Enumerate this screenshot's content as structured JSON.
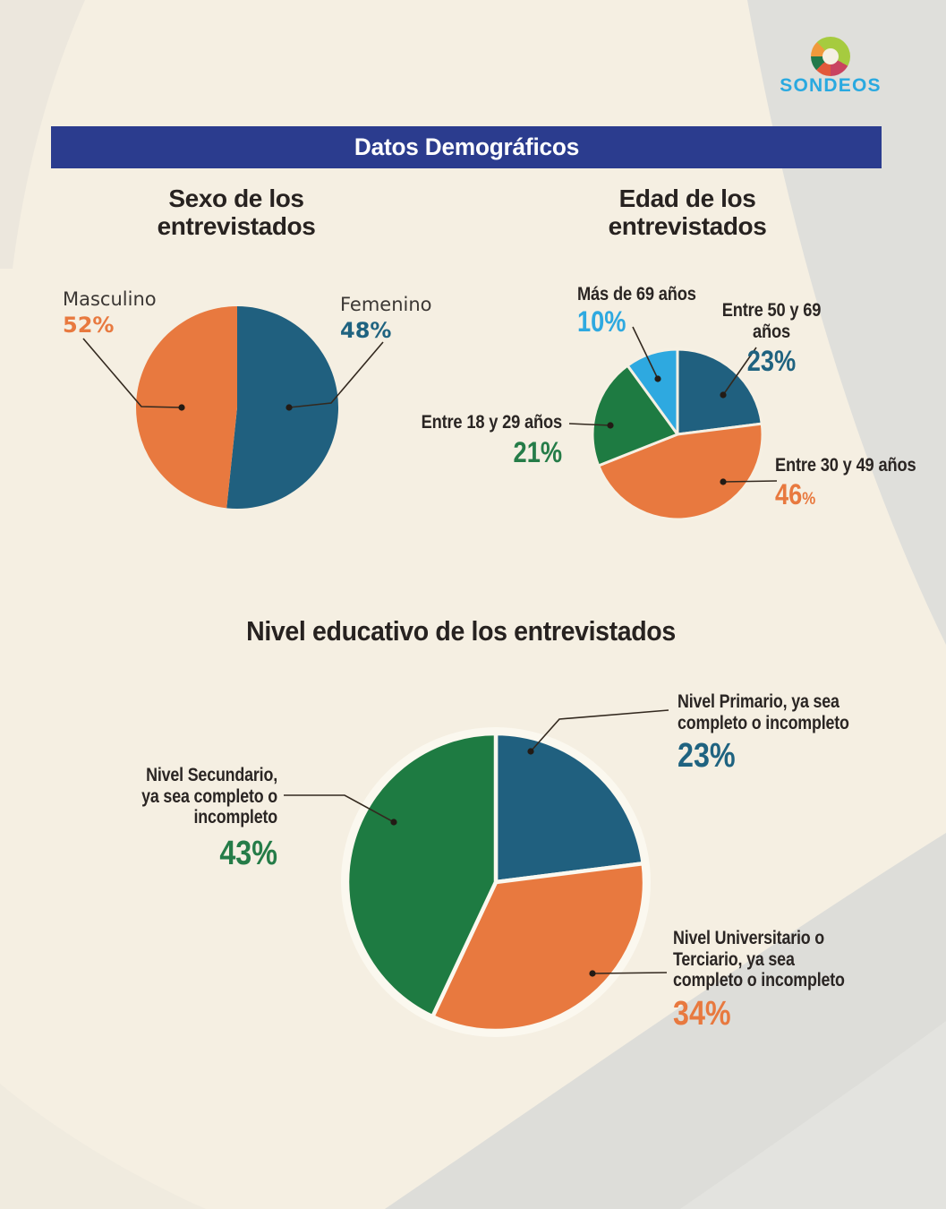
{
  "brand": {
    "name": "SONDEOS",
    "accent": "#29A9E0"
  },
  "banner": {
    "title": "Datos Demográficos",
    "bg": "#2B3C8E"
  },
  "colors": {
    "background": "#F5EFE2",
    "swoosh_gray": "#DFDFDB",
    "blue": "#20607F",
    "orange": "#E8793F",
    "green": "#1E7B42",
    "light_blue": "#2EA9E0",
    "leader_line": "#33291F"
  },
  "sections": {
    "sexo": {
      "title": "Sexo de los entrevistados",
      "display_title": "Sexo de los\nentrevistados",
      "slices": [
        {
          "label": "Femenino",
          "pct": "48%",
          "value": 48,
          "color": "#20607F"
        },
        {
          "label": "Masculino",
          "pct": "52%",
          "value": 52,
          "color": "#E8793F"
        }
      ]
    },
    "edad": {
      "title": "Edad de los entrevistados",
      "display_title": "Edad de los\nentrevistados",
      "slices": [
        {
          "label": "Entre 50 y 69 años",
          "pct": "23%",
          "value": 23,
          "color": "#20607F"
        },
        {
          "label": "Entre 30 y 49 años",
          "pct": "46%",
          "value": 46,
          "color": "#E8793F"
        },
        {
          "label": "Entre 18 y 29 años",
          "pct": "21%",
          "value": 21,
          "color": "#1E7B42"
        },
        {
          "label": "Más de 69 años",
          "pct": "10%",
          "value": 10,
          "color": "#2EA9E0"
        }
      ]
    },
    "educacion": {
      "title": "Nivel educativo de los entrevistados",
      "slices": [
        {
          "label": "Nivel Primario, ya sea\ncompleto o incompleto",
          "pct": "23%",
          "value": 23,
          "color": "#20607F"
        },
        {
          "label": "Nivel Universitario o\nTerciario, ya sea\ncompleto o incompleto",
          "pct": "34%",
          "value": 34,
          "color": "#E8793F"
        },
        {
          "label": "Nivel Secundario,\nya sea completo o incompleto",
          "pct": "43%",
          "value": 43,
          "color": "#1E7B42"
        }
      ]
    }
  },
  "chart_data": [
    {
      "type": "pie",
      "title": "Sexo de los entrevistados",
      "labels": [
        "Femenino",
        "Masculino"
      ],
      "values": [
        48,
        52
      ],
      "unit": "%",
      "colors": [
        "#20607F",
        "#E8793F"
      ],
      "start_angle": "top",
      "direction": "clockwise",
      "legend_position": "callouts"
    },
    {
      "type": "pie",
      "title": "Edad de los entrevistados",
      "labels": [
        "Entre 50 y 69 años",
        "Entre 30 y 49 años",
        "Entre 18 y 29 años",
        "Más de 69 años"
      ],
      "values": [
        23,
        46,
        21,
        10
      ],
      "unit": "%",
      "colors": [
        "#20607F",
        "#E8793F",
        "#1E7B42",
        "#2EA9E0"
      ],
      "start_angle": "top",
      "direction": "clockwise",
      "legend_position": "callouts"
    },
    {
      "type": "pie",
      "title": "Nivel educativo de los entrevistados",
      "labels": [
        "Nivel Primario, ya sea completo o incompleto",
        "Nivel Universitario o Terciario, ya sea completo o incompleto",
        "Nivel Secundario, ya sea completo o incompleto"
      ],
      "values": [
        23,
        34,
        43
      ],
      "unit": "%",
      "colors": [
        "#20607F",
        "#E8793F",
        "#1E7B42"
      ],
      "start_angle": "top",
      "direction": "clockwise",
      "legend_position": "callouts"
    }
  ]
}
